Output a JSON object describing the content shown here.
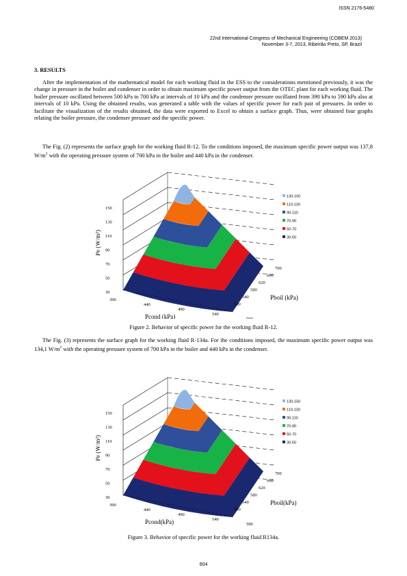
{
  "header": {
    "issn": "ISSN 2176-5480",
    "conference_line1": "22nd International Congress of Mechanical Engineering (COBEM 2013)",
    "conference_line2": "November 3-7, 2013, Ribeirão Preto, SP, Brazil"
  },
  "section_title": "3. RESULTS",
  "paragraphs": {
    "p1": "After the implementation of the mathematical model for each working fluid in the ESS to the considerations mentioned previously, it was the change in pressure in the boiler and condenser in order to obtain maximum specific power output from the OTEC plant for each working fluid. The boiler pressure oscillated between 500 kPa to 700 kPa at intervals of 10 kPa and the condenser pressure oscillated from 390 kPa to 590 kPa also at intervals of 10 kPa. Using the obtained results, was generated a table with the values of specific power for each pair of pressures. In order to facilitate the visualization of the results obtained, the data were exported to Excel to obtain a surface graph. Thus, were obtained four graphs relating the boiler pressure, the condenser pressure and the specific power.",
    "p2_before": "The Fig. (2) represents the surface graph for the working fluid R-12. To the conditions imposed, the maximum specific power output was 137,8 W/m",
    "p2_sup": "2",
    "p2_after": " with the operating pressure system of 700 kPa in the boiler and 440 kPa in the condenser.",
    "p3_before": "The Fig. (3) represents the surface graph for the working fluid R-134a. For the conditions imposed, the maximum specific power output was 134,1 W/m",
    "p3_sup": "2",
    "p3_after": " with the operating pressure system of 700 kPa in the boiler and 440 kPa in the condenser."
  },
  "figure2": {
    "caption": "Figure 2. Behavior of specific power for the working fluid R-12."
  },
  "figure3": {
    "caption": "Figure 3. Behavior of specific power for the working fluid R134a."
  },
  "page_number": "604",
  "chart_data": [
    {
      "type": "surface",
      "ylabel": "Pe (W/m²)",
      "xlabel": "Pcond (kPa)",
      "zlabel": "Pboil (kPa)",
      "y_ticks": [
        "150",
        "130",
        "110",
        "90",
        "70",
        "50",
        "30"
      ],
      "x_ticks": [
        "390",
        "440",
        "490",
        "540",
        "590"
      ],
      "z_ticks": [
        "700",
        "660",
        "620",
        "580",
        "540",
        "500"
      ],
      "legend": [
        {
          "label": "130-150",
          "color": "#8eb4e3"
        },
        {
          "label": "110-130",
          "color": "#f36c0c"
        },
        {
          "label": "90-110",
          "color": "#2e4f9a"
        },
        {
          "label": "70-90",
          "color": "#18b347"
        },
        {
          "label": "50-70",
          "color": "#e3111b"
        },
        {
          "label": "30-50",
          "color": "#1a2870"
        }
      ],
      "max_value": 137.8,
      "max_at": {
        "boiler_kPa": 700,
        "condenser_kPa": 440
      }
    },
    {
      "type": "surface",
      "ylabel": "Pe (W/m²)",
      "xlabel": "Pcond(kPa)",
      "zlabel": "Pboil(kPa)",
      "y_ticks": [
        "150",
        "130",
        "110",
        "90",
        "70",
        "50",
        "30"
      ],
      "x_ticks": [
        "390",
        "440",
        "490",
        "540",
        "590"
      ],
      "z_ticks": [
        "700",
        "660",
        "620",
        "580",
        "540",
        "500"
      ],
      "legend": [
        {
          "label": "130-150",
          "color": "#8eb4e3"
        },
        {
          "label": "110-130",
          "color": "#f36c0c"
        },
        {
          "label": "90-110",
          "color": "#2e4f9a"
        },
        {
          "label": "70-90",
          "color": "#18b347"
        },
        {
          "label": "50-70",
          "color": "#e3111b"
        },
        {
          "label": "30-50",
          "color": "#1a2870"
        }
      ],
      "max_value": 134.1,
      "max_at": {
        "boiler_kPa": 700,
        "condenser_kPa": 440
      }
    }
  ]
}
